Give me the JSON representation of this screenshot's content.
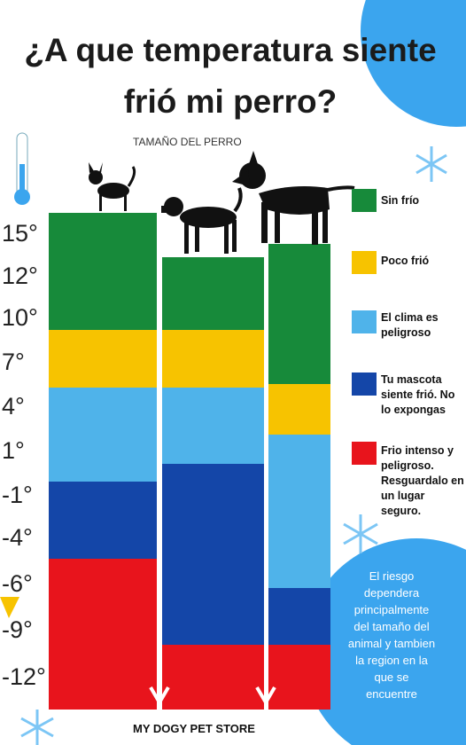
{
  "title": "¿A que temperatura siente frió mi perro?",
  "size_label": "TAMAÑO DEL PERRO",
  "temperatures": [
    "15°",
    "12°",
    "10°",
    "7°",
    "4°",
    "1°",
    "-1°",
    "-4°",
    "-6°",
    "-9°",
    "-12°"
  ],
  "legend": [
    {
      "label": "Sin frío",
      "color": "#178a3a"
    },
    {
      "label": "Poco frió",
      "color": "#f7c300"
    },
    {
      "label": "El clima es peligroso",
      "color": "#4fb3ea"
    },
    {
      "label": "Tu mascota siente frió. No lo expongas",
      "color": "#1446a8"
    },
    {
      "label": "Frio intenso y peligroso. Resguardalo en un lugar seguro.",
      "color": "#e8141c"
    }
  ],
  "note": "El riesgo dependera principalmente del tamaño del animal y tambien la region en la que se encuentre",
  "footer": "MY DOGY PET STORE"
}
